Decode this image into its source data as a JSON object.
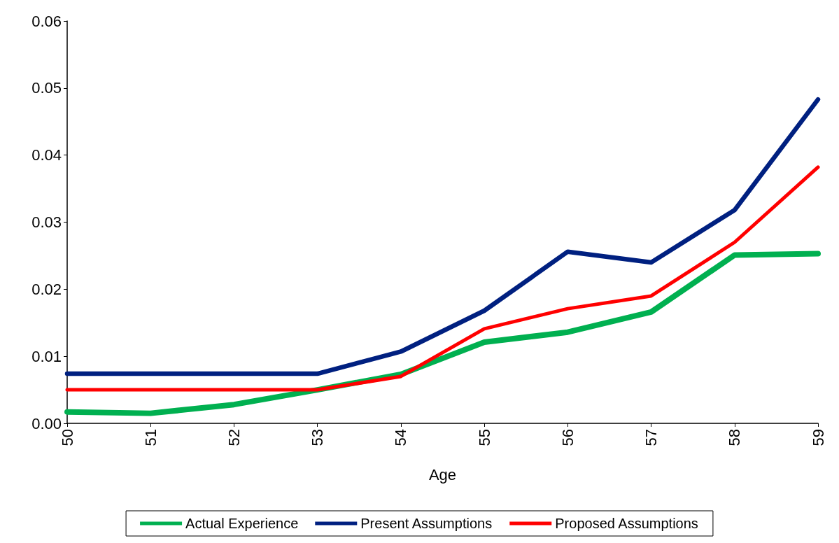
{
  "chart_data": {
    "type": "line",
    "xlabel": "Age",
    "categories": [
      "50",
      "51",
      "52",
      "53",
      "54",
      "55",
      "56",
      "57",
      "58",
      "59"
    ],
    "series": [
      {
        "name": "Actual Experience",
        "color": "#00b050",
        "values": [
          0.0017,
          0.0015,
          0.0028,
          0.005,
          0.0073,
          0.0121,
          0.0136,
          0.0166,
          0.0251,
          0.0253
        ]
      },
      {
        "name": "Present Assumptions",
        "color": "#002080",
        "values": [
          0.0074,
          0.0074,
          0.0074,
          0.0074,
          0.0107,
          0.0168,
          0.0256,
          0.024,
          0.0318,
          0.0483
        ]
      },
      {
        "name": "Proposed Assumptions",
        "color": "#ff0000",
        "values": [
          0.005,
          0.005,
          0.005,
          0.005,
          0.007,
          0.0141,
          0.0171,
          0.019,
          0.027,
          0.0382
        ]
      }
    ],
    "ylim": [
      0,
      0.06
    ],
    "yticks": [
      {
        "value": 0,
        "label": "0.00"
      },
      {
        "value": 0.01,
        "label": "0.01"
      },
      {
        "value": 0.02,
        "label": "0.02"
      },
      {
        "value": 0.03,
        "label": "0.03"
      },
      {
        "value": 0.04,
        "label": "0.04"
      },
      {
        "value": 0.05,
        "label": "0.05"
      },
      {
        "value": 0.06,
        "label": "0.06"
      }
    ],
    "grid": false,
    "legend": "bottom",
    "marker": "none",
    "line_style": "solid"
  }
}
